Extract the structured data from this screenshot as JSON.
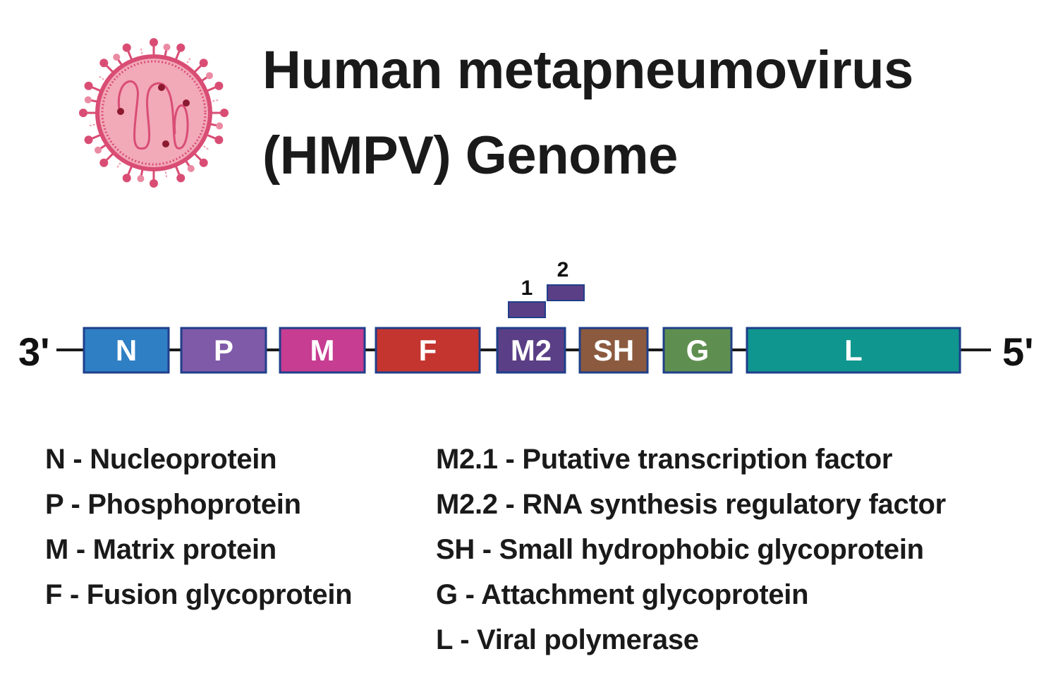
{
  "title": {
    "line1": "Human metapneumovirus",
    "line2": "(HMPV) Genome"
  },
  "diagram": {
    "end_left": "3'",
    "end_right": "5'",
    "genes": [
      {
        "label": "N",
        "color": "#2f7fc4"
      },
      {
        "label": "P",
        "color": "#7f5aa8"
      },
      {
        "label": "M",
        "color": "#c63d92"
      },
      {
        "label": "F",
        "color": "#c4352f"
      },
      {
        "label": "M2",
        "color": "#5a3f86"
      },
      {
        "label": "SH",
        "color": "#8b5a3f"
      },
      {
        "label": "G",
        "color": "#5f8f50"
      },
      {
        "label": "L",
        "color": "#0f968f"
      }
    ],
    "m2_orfs": [
      {
        "label": "1",
        "color": "#5a3f86"
      },
      {
        "label": "2",
        "color": "#5a3f86"
      }
    ],
    "border_color": "#1f3f8a",
    "virus_icon": "virus-particle-icon"
  },
  "legend": {
    "left": [
      "N - Nucleoprotein",
      "P - Phosphoprotein",
      "M - Matrix protein",
      "F - Fusion glycoprotein"
    ],
    "right": [
      "M2.1 - Putative transcription factor",
      "M2.2 - RNA synthesis regulatory factor",
      "SH - Small hydrophobic glycoprotein",
      "G - Attachment glycoprotein",
      "L - Viral polymerase"
    ]
  }
}
